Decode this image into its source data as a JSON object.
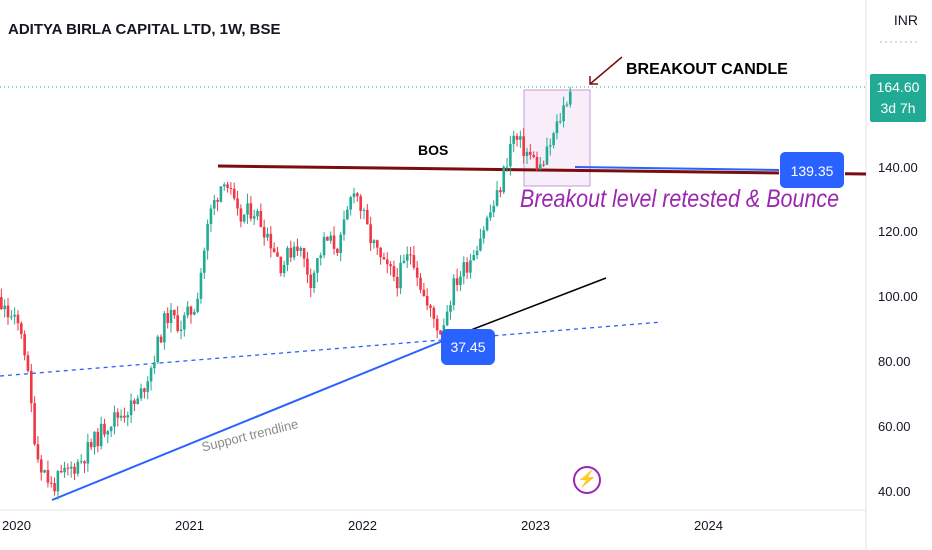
{
  "header": {
    "title": "ADITYA BIRLA CAPITAL LTD, 1W, BSE",
    "currency": "INR"
  },
  "last_price": {
    "value": "164.60",
    "countdown": "3d 7h"
  },
  "annotations": {
    "breakout_candle": "BREAKOUT CANDLE",
    "bos": "BOS",
    "retest": "Breakout level retested & Bounce",
    "support_trendline": "Support trendline",
    "level_badge": "139.35",
    "trend_badge": "37.45",
    "flash_icon": "lightning-icon"
  },
  "colors": {
    "up": "#22ab94",
    "down": "#f23645",
    "bos_line": "#7b0c10",
    "trendline": "#2962ff",
    "accent": "#9c27b0"
  },
  "chart_data": {
    "type": "candlestick",
    "title": "ADITYA BIRLA CAPITAL LTD, 1W, BSE",
    "xlabel": "",
    "ylabel": "",
    "ylim": [
      38,
      178
    ],
    "y_ticks": [
      "140.00",
      "120.00",
      "100.00",
      "80.00",
      "60.00",
      "40.00"
    ],
    "x_ticks": [
      "2020",
      "2021",
      "2022",
      "2023",
      "2024"
    ],
    "levels": [
      {
        "name": "BOS",
        "value": 139.35
      }
    ],
    "close_path": [
      [
        "2019-10",
        108
      ],
      [
        "2019-12",
        100
      ],
      [
        "2020-02",
        90
      ],
      [
        "2020-03",
        52
      ],
      [
        "2020-04",
        42
      ],
      [
        "2020-05",
        46
      ],
      [
        "2020-06",
        50
      ],
      [
        "2020-07",
        56
      ],
      [
        "2020-08",
        62
      ],
      [
        "2020-09",
        65
      ],
      [
        "2020-10",
        68
      ],
      [
        "2020-11",
        80
      ],
      [
        "2020-12",
        95
      ],
      [
        "2021-01",
        92
      ],
      [
        "2021-02",
        98
      ],
      [
        "2021-03",
        126
      ],
      [
        "2021-04",
        138
      ],
      [
        "2021-05",
        124
      ],
      [
        "2021-06",
        128
      ],
      [
        "2021-07",
        120
      ],
      [
        "2021-08",
        110
      ],
      [
        "2021-09",
        118
      ],
      [
        "2021-10",
        106
      ],
      [
        "2021-11",
        118
      ],
      [
        "2021-12",
        116
      ],
      [
        "2022-01",
        135
      ],
      [
        "2022-02",
        120
      ],
      [
        "2022-03",
        110
      ],
      [
        "2022-04",
        106
      ],
      [
        "2022-05",
        115
      ],
      [
        "2022-06",
        98
      ],
      [
        "2022-07",
        90
      ],
      [
        "2022-08",
        105
      ],
      [
        "2022-09",
        112
      ],
      [
        "2022-10",
        122
      ],
      [
        "2022-11",
        132
      ],
      [
        "2022-12",
        150
      ],
      [
        "2023-01",
        145
      ],
      [
        "2023-02",
        140
      ],
      [
        "2023-03",
        152
      ],
      [
        "2023-04",
        165
      ]
    ]
  }
}
